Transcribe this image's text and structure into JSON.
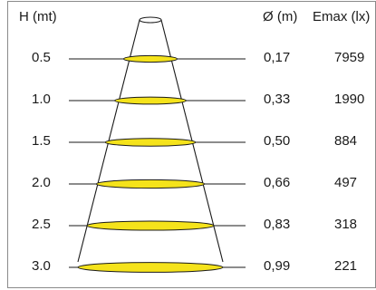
{
  "headers": {
    "height": "H (mt)",
    "diameter": "Ø (m)",
    "emax": "Emax (lx)"
  },
  "colors": {
    "beam_fill": "#f5e31b",
    "line": "#1a1a1a",
    "frame": "#8a8a8a"
  },
  "rows": [
    {
      "h": "0.5",
      "d": "0,17",
      "e": "7959",
      "d_value": 0.17
    },
    {
      "h": "1.0",
      "d": "0,33",
      "e": "1990",
      "d_value": 0.33
    },
    {
      "h": "1.5",
      "d": "0,50",
      "e": "884",
      "d_value": 0.5
    },
    {
      "h": "2.0",
      "d": "0,66",
      "e": "497",
      "d_value": 0.66
    },
    {
      "h": "2.5",
      "d": "0,83",
      "e": "318",
      "d_value": 0.83
    },
    {
      "h": "3.0",
      "d": "0,99",
      "e": "221",
      "d_value": 0.99
    }
  ]
}
